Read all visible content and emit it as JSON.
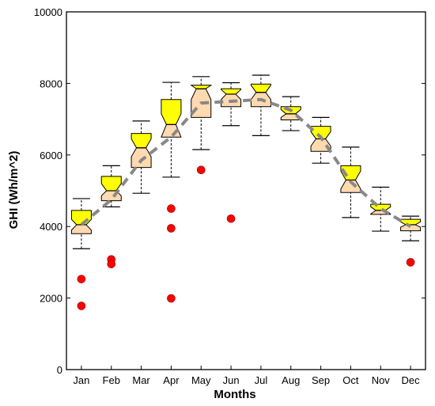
{
  "chart_data": {
    "type": "box",
    "xlabel": "Months",
    "ylabel": "GHI (Wh/m^2)",
    "ylim": [
      0,
      10000
    ],
    "yticks": [
      0,
      2000,
      4000,
      6000,
      8000,
      10000
    ],
    "ytick_labels": [
      "0",
      "2000",
      "4000",
      "6000",
      "8000",
      "10000"
    ],
    "categories": [
      "Jan",
      "Feb",
      "Mar",
      "Apr",
      "May",
      "Jun",
      "Jul",
      "Aug",
      "Sep",
      "Oct",
      "Nov",
      "Dec"
    ],
    "boxes": [
      {
        "min": 3380,
        "q1": 3800,
        "median": 4050,
        "q3": 4450,
        "max": 4780,
        "notch_low": 3900,
        "notch_high": 4200,
        "outliers": [
          2530,
          1780
        ]
      },
      {
        "min": 4550,
        "q1": 4720,
        "median": 5000,
        "q3": 5400,
        "max": 5700,
        "notch_low": 4860,
        "notch_high": 5200,
        "outliers": [
          3080,
          2950
        ]
      },
      {
        "min": 4930,
        "q1": 5650,
        "median": 6200,
        "q3": 6600,
        "max": 6950,
        "notch_low": 5950,
        "notch_high": 6450,
        "outliers": []
      },
      {
        "min": 5380,
        "q1": 6500,
        "median": 6850,
        "q3": 7550,
        "max": 8030,
        "notch_low": 6500,
        "notch_high": 7150,
        "outliers": [
          4500,
          3950,
          1990
        ]
      },
      {
        "min": 6150,
        "q1": 7050,
        "median": 7850,
        "q3": 7950,
        "max": 8190,
        "notch_low": 7550,
        "notch_high": 7950,
        "outliers": [
          5580
        ]
      },
      {
        "min": 6820,
        "q1": 7350,
        "median": 7700,
        "q3": 7850,
        "max": 8020,
        "notch_low": 7550,
        "notch_high": 7830,
        "outliers": [
          4220
        ]
      },
      {
        "min": 6540,
        "q1": 7350,
        "median": 7750,
        "q3": 7980,
        "max": 8230,
        "notch_low": 7550,
        "notch_high": 7950,
        "outliers": []
      },
      {
        "min": 6680,
        "q1": 6980,
        "median": 7150,
        "q3": 7350,
        "max": 7630,
        "notch_low": 7050,
        "notch_high": 7270,
        "outliers": []
      },
      {
        "min": 5770,
        "q1": 6100,
        "median": 6450,
        "q3": 6800,
        "max": 7050,
        "notch_low": 6250,
        "notch_high": 6650,
        "outliers": []
      },
      {
        "min": 4250,
        "q1": 4950,
        "median": 5300,
        "q3": 5700,
        "max": 6220,
        "notch_low": 5050,
        "notch_high": 5550,
        "outliers": []
      },
      {
        "min": 3870,
        "q1": 4340,
        "median": 4450,
        "q3": 4620,
        "max": 5100,
        "notch_low": 4350,
        "notch_high": 4550,
        "outliers": []
      },
      {
        "min": 3600,
        "q1": 3880,
        "median": 4050,
        "q3": 4200,
        "max": 4290,
        "notch_low": 3980,
        "notch_high": 4130,
        "outliers": [
          3000
        ]
      }
    ],
    "mean_line": [
      4050,
      4750,
      5850,
      6500,
      7450,
      7500,
      7550,
      7250,
      6500,
      5250,
      4500,
      4000
    ],
    "colors": {
      "lower_box": "#ffd9b0",
      "upper_box": "#ffff00",
      "outlier": "#ff0000",
      "mean_line": "#888888",
      "axis": "#000000"
    }
  }
}
